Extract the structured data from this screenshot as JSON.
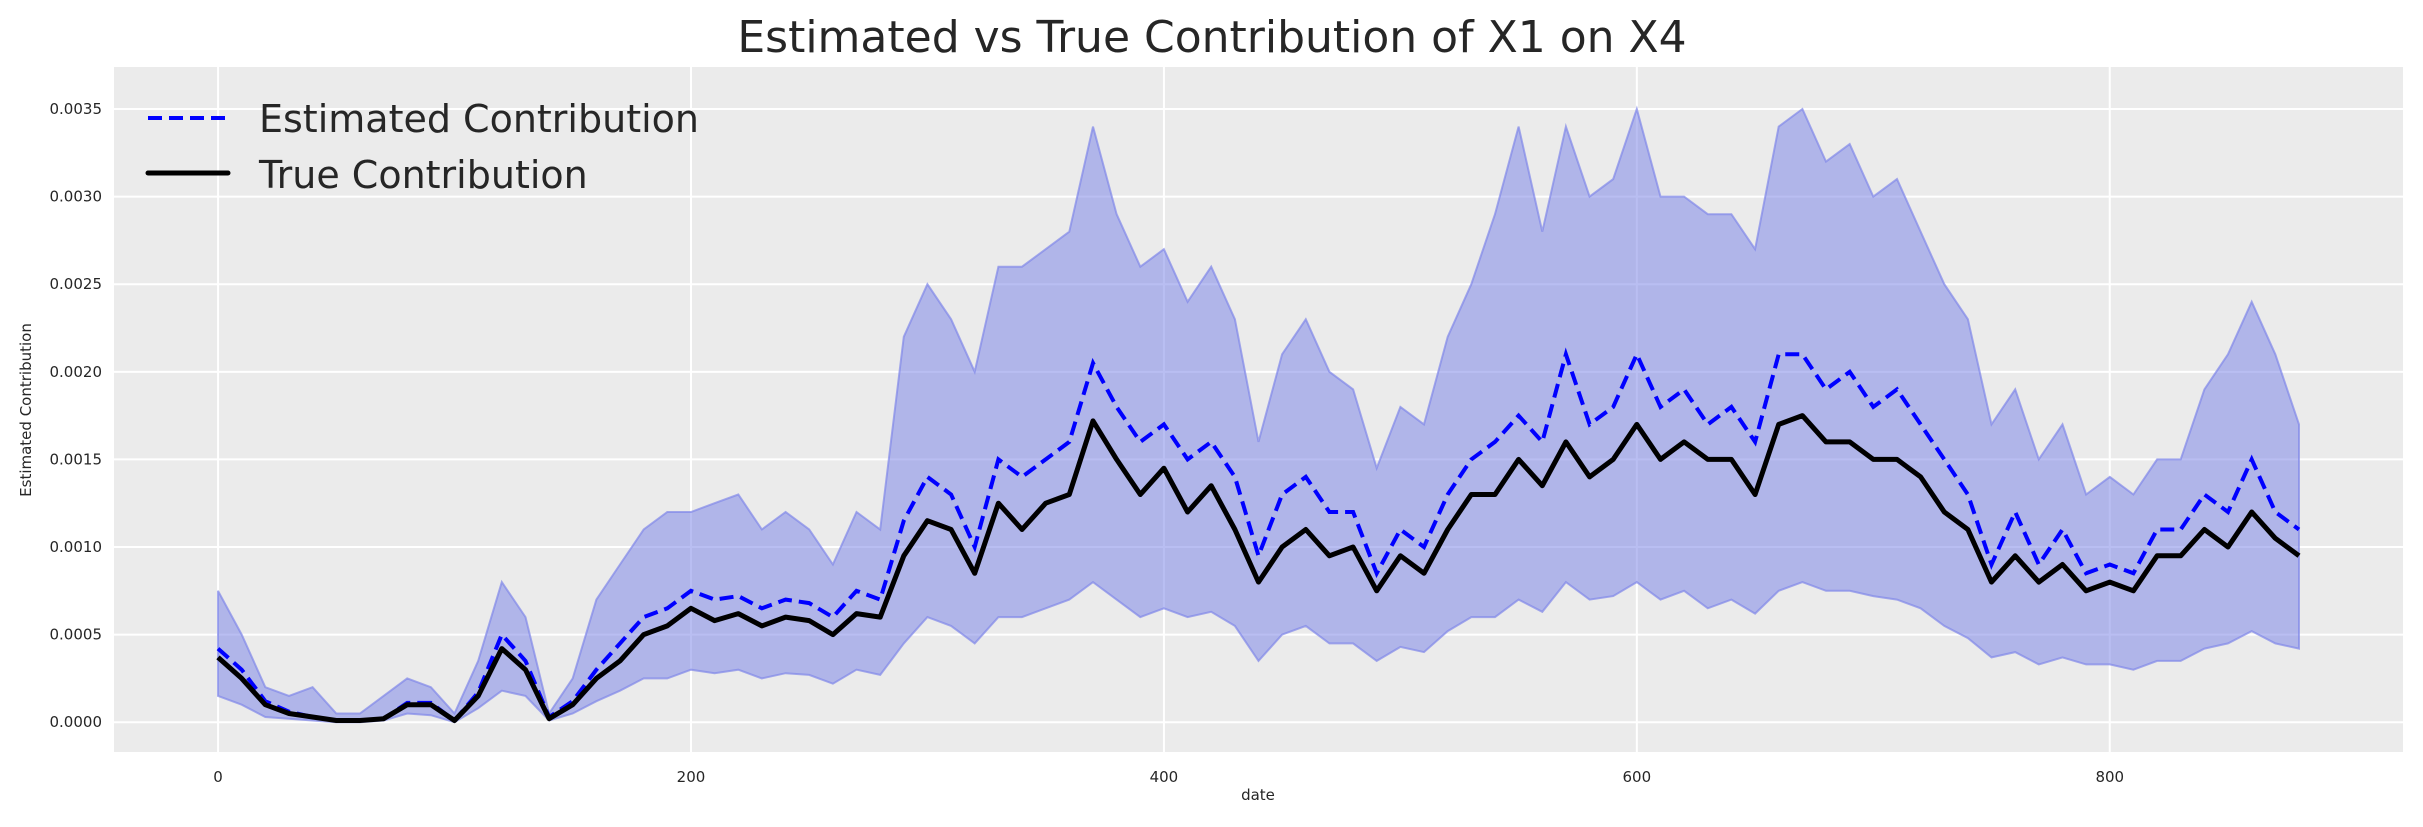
{
  "chart_data": {
    "type": "line",
    "title": "Estimated vs True Contribution of X1 on X4",
    "xlabel": "date",
    "ylabel": "Estimated Contribution",
    "xlim": [
      -44,
      924
    ],
    "ylim": [
      -0.00017,
      0.00374
    ],
    "xticks": [
      0,
      200,
      400,
      600,
      800
    ],
    "xtick_labels": [
      "0",
      "200",
      "400",
      "600",
      "800"
    ],
    "yticks": [
      0,
      0.0005,
      0.001,
      0.0015,
      0.002,
      0.0025,
      0.003,
      0.0035
    ],
    "ytick_labels": [
      "0.0000",
      "0.0005",
      "0.0010",
      "0.0015",
      "0.0020",
      "0.0025",
      "0.0030",
      "0.0035"
    ],
    "grid": true,
    "legend_position": "top-left",
    "colors": {
      "estimated": "#0000ff",
      "true": "#000000",
      "band": "#8088e8",
      "background": "#ebebeb"
    },
    "x": [
      0,
      10,
      20,
      30,
      40,
      50,
      60,
      70,
      80,
      90,
      100,
      110,
      120,
      130,
      140,
      150,
      160,
      170,
      180,
      190,
      200,
      210,
      220,
      230,
      240,
      250,
      260,
      270,
      280,
      290,
      300,
      310,
      320,
      330,
      340,
      350,
      360,
      370,
      380,
      390,
      400,
      410,
      420,
      430,
      440,
      450,
      460,
      470,
      480,
      490,
      500,
      510,
      520,
      530,
      540,
      550,
      560,
      570,
      580,
      590,
      600,
      610,
      620,
      630,
      640,
      650,
      660,
      670,
      680,
      690,
      700,
      710,
      720,
      730,
      740,
      750,
      760,
      770,
      780,
      790,
      800,
      810,
      820,
      830,
      840,
      850,
      860,
      870,
      880
    ],
    "series": [
      {
        "name": "Estimated Contribution",
        "style": "dashed",
        "values": [
          0.00042,
          0.0003,
          0.00012,
          6e-05,
          3e-05,
          1e-05,
          1e-05,
          2e-05,
          0.00011,
          0.00011,
          1e-05,
          0.00017,
          0.0005,
          0.00035,
          3e-05,
          0.00012,
          0.0003,
          0.00045,
          0.0006,
          0.00065,
          0.00075,
          0.0007,
          0.00072,
          0.00065,
          0.0007,
          0.00068,
          0.0006,
          0.00075,
          0.0007,
          0.00115,
          0.0014,
          0.0013,
          0.001,
          0.0015,
          0.0014,
          0.0015,
          0.0016,
          0.00205,
          0.0018,
          0.0016,
          0.0017,
          0.0015,
          0.0016,
          0.0014,
          0.00095,
          0.0013,
          0.0014,
          0.0012,
          0.0012,
          0.00085,
          0.0011,
          0.001,
          0.0013,
          0.0015,
          0.0016,
          0.00175,
          0.0016,
          0.0021,
          0.0017,
          0.0018,
          0.0021,
          0.0018,
          0.0019,
          0.0017,
          0.0018,
          0.0016,
          0.0021,
          0.0021,
          0.0019,
          0.002,
          0.0018,
          0.0019,
          0.0017,
          0.0015,
          0.0013,
          0.0009,
          0.0012,
          0.0009,
          0.0011,
          0.00085,
          0.0009,
          0.00085,
          0.0011,
          0.0011,
          0.0013,
          0.0012,
          0.0015,
          0.0012,
          0.0011
        ]
      },
      {
        "name": "True Contribution",
        "style": "solid",
        "values": [
          0.00037,
          0.00025,
          0.0001,
          5e-05,
          3e-05,
          1e-05,
          1e-05,
          2e-05,
          0.0001,
          0.0001,
          1e-05,
          0.00015,
          0.00042,
          0.0003,
          2e-05,
          0.0001,
          0.00025,
          0.00035,
          0.0005,
          0.00055,
          0.00065,
          0.00058,
          0.00062,
          0.00055,
          0.0006,
          0.00058,
          0.0005,
          0.00062,
          0.0006,
          0.00095,
          0.00115,
          0.0011,
          0.00085,
          0.00125,
          0.0011,
          0.00125,
          0.0013,
          0.00172,
          0.0015,
          0.0013,
          0.00145,
          0.0012,
          0.00135,
          0.0011,
          0.0008,
          0.001,
          0.0011,
          0.00095,
          0.001,
          0.00075,
          0.00095,
          0.00085,
          0.0011,
          0.0013,
          0.0013,
          0.0015,
          0.00135,
          0.0016,
          0.0014,
          0.0015,
          0.0017,
          0.0015,
          0.0016,
          0.0015,
          0.0015,
          0.0013,
          0.0017,
          0.00175,
          0.0016,
          0.0016,
          0.0015,
          0.0015,
          0.0014,
          0.0012,
          0.0011,
          0.0008,
          0.00095,
          0.0008,
          0.0009,
          0.00075,
          0.0008,
          0.00075,
          0.00095,
          0.00095,
          0.0011,
          0.001,
          0.0012,
          0.00105,
          0.00095
        ]
      }
    ],
    "band": {
      "upper": [
        0.00075,
        0.0005,
        0.0002,
        0.00015,
        0.0002,
        5e-05,
        5e-05,
        0.00015,
        0.00025,
        0.0002,
        5e-05,
        0.00035,
        0.0008,
        0.0006,
        5e-05,
        0.00025,
        0.0007,
        0.0009,
        0.0011,
        0.0012,
        0.0012,
        0.00125,
        0.0013,
        0.0011,
        0.0012,
        0.0011,
        0.0009,
        0.0012,
        0.0011,
        0.0022,
        0.0025,
        0.0023,
        0.002,
        0.0026,
        0.0026,
        0.0027,
        0.0028,
        0.0034,
        0.0029,
        0.0026,
        0.0027,
        0.0024,
        0.0026,
        0.0023,
        0.0016,
        0.0021,
        0.0023,
        0.002,
        0.0019,
        0.00145,
        0.0018,
        0.0017,
        0.0022,
        0.0025,
        0.0029,
        0.0034,
        0.0028,
        0.0034,
        0.003,
        0.0031,
        0.0035,
        0.003,
        0.003,
        0.0029,
        0.0029,
        0.0027,
        0.0034,
        0.0035,
        0.0032,
        0.0033,
        0.003,
        0.0031,
        0.0028,
        0.0025,
        0.0023,
        0.0017,
        0.0019,
        0.0015,
        0.0017,
        0.0013,
        0.0014,
        0.0013,
        0.0015,
        0.0015,
        0.0019,
        0.0021,
        0.0024,
        0.0021,
        0.0017
      ],
      "lower": [
        0.00015,
        0.0001,
        3e-05,
        2e-05,
        1e-05,
        0,
        0,
        1e-05,
        5e-05,
        4e-05,
        0,
        8e-05,
        0.00018,
        0.00015,
        1e-05,
        5e-05,
        0.00012,
        0.00018,
        0.00025,
        0.00025,
        0.0003,
        0.00028,
        0.0003,
        0.00025,
        0.00028,
        0.00027,
        0.00022,
        0.0003,
        0.00027,
        0.00045,
        0.0006,
        0.00055,
        0.00045,
        0.0006,
        0.0006,
        0.00065,
        0.0007,
        0.0008,
        0.0007,
        0.0006,
        0.00065,
        0.0006,
        0.00063,
        0.00055,
        0.00035,
        0.0005,
        0.00055,
        0.00045,
        0.00045,
        0.00035,
        0.00043,
        0.0004,
        0.00052,
        0.0006,
        0.0006,
        0.0007,
        0.00063,
        0.0008,
        0.0007,
        0.00072,
        0.0008,
        0.0007,
        0.00075,
        0.00065,
        0.0007,
        0.00062,
        0.00075,
        0.0008,
        0.00075,
        0.00075,
        0.00072,
        0.0007,
        0.00065,
        0.00055,
        0.00048,
        0.00037,
        0.0004,
        0.00033,
        0.00037,
        0.00033,
        0.00033,
        0.0003,
        0.00035,
        0.00035,
        0.00042,
        0.00045,
        0.00052,
        0.00045,
        0.00042
      ]
    }
  }
}
